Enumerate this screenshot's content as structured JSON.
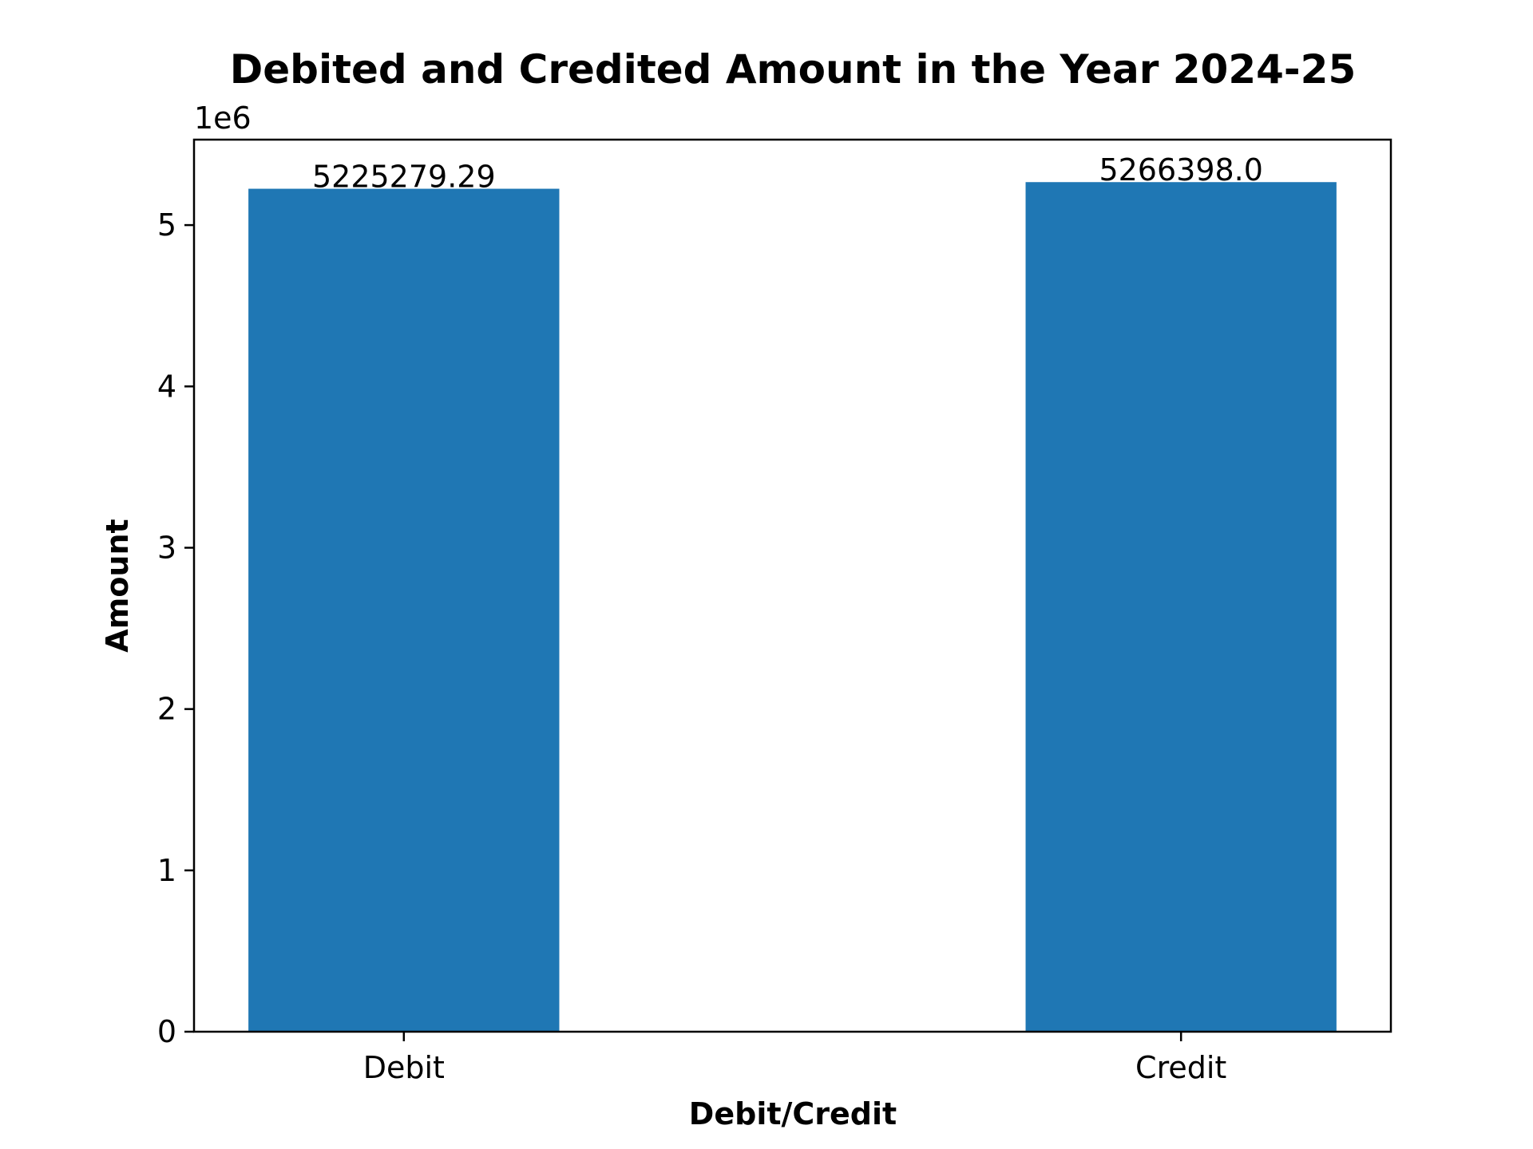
{
  "chart_data": {
    "type": "bar",
    "title": "Debited and Credited Amount in the Year 2024-25",
    "xlabel": "Debit/Credit",
    "ylabel": "Amount",
    "y_offset_label": "1e6",
    "categories": [
      "Debit",
      "Credit"
    ],
    "values": [
      5225279.29,
      5266398.0
    ],
    "data_labels": [
      "5225279.29",
      "5266398.0"
    ],
    "yticks": [
      0,
      1000000,
      2000000,
      3000000,
      4000000,
      5000000
    ],
    "ytick_labels": [
      "0",
      "1",
      "2",
      "3",
      "4",
      "5"
    ],
    "ylim": [
      0,
      5529717.9
    ],
    "grid": false,
    "legend": "none",
    "bar_color": "#1f77b4"
  }
}
